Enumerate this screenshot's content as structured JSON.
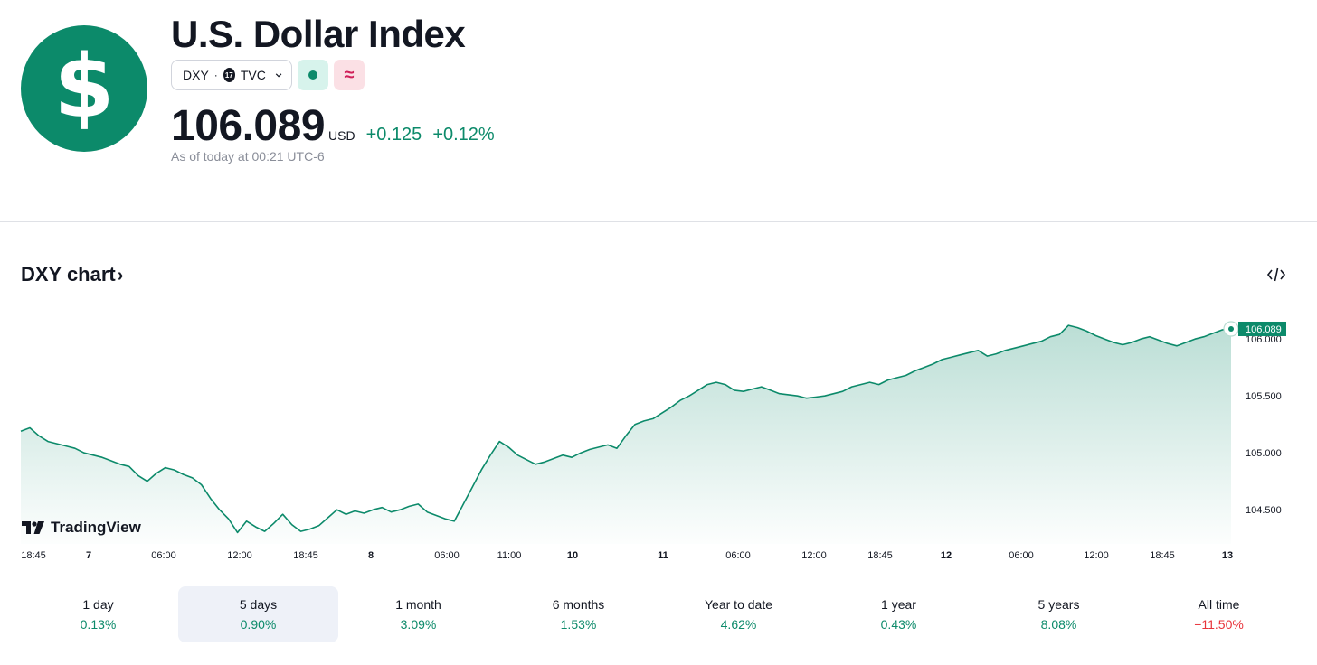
{
  "header": {
    "logo_glyph": "$",
    "title": "U.S. Dollar Index",
    "symbol": "DXY",
    "separator": "·",
    "exchange_badge": "17",
    "exchange": "TVC",
    "market_status_icon": "open-dot-icon",
    "delayed_icon_glyph": "≈",
    "price": "106.089",
    "currency": "USD",
    "change": "+0.125",
    "change_percent": "+0.12%",
    "as_of": "As of today at 00:21 UTC-6"
  },
  "chart_section": {
    "title": "DXY chart",
    "title_arrow": "›",
    "embed_icon": "code-embed-icon",
    "brand": "TradingView"
  },
  "chart_data": {
    "type": "area",
    "series": [
      {
        "values": [
          105.19,
          105.22,
          105.15,
          105.1,
          105.08,
          105.06,
          105.04,
          105.0,
          104.98,
          104.96,
          104.93,
          104.9,
          104.88,
          104.8,
          104.75,
          104.82,
          104.87,
          104.85,
          104.81,
          104.78,
          104.72,
          104.6,
          104.5,
          104.42,
          104.3,
          104.4,
          104.35,
          104.31,
          104.38,
          104.46,
          104.37,
          104.31,
          104.33,
          104.36,
          104.43,
          104.5,
          104.46,
          104.49,
          104.47,
          104.5,
          104.52,
          104.48,
          104.5,
          104.53,
          104.55,
          104.48,
          104.45,
          104.42,
          104.4,
          104.55,
          104.7,
          104.85,
          104.98,
          105.1,
          105.05,
          104.98,
          104.94,
          104.9,
          104.92,
          104.95,
          104.98,
          104.96,
          105.0,
          105.03,
          105.05,
          105.07,
          105.04,
          105.15,
          105.25,
          105.28,
          105.3,
          105.35,
          105.4,
          105.46,
          105.5,
          105.55,
          105.6,
          105.62,
          105.6,
          105.55,
          105.54,
          105.56,
          105.58,
          105.55,
          105.52,
          105.51,
          105.5,
          105.48,
          105.49,
          105.5,
          105.52,
          105.54,
          105.58,
          105.6,
          105.62,
          105.6,
          105.64,
          105.66,
          105.68,
          105.72,
          105.75,
          105.78,
          105.82,
          105.84,
          105.86,
          105.88,
          105.9,
          105.85,
          105.87,
          105.9,
          105.92,
          105.94,
          105.96,
          105.98,
          106.02,
          106.04,
          106.12,
          106.1,
          106.07,
          106.03,
          106.0,
          105.97,
          105.95,
          105.97,
          106.0,
          106.02,
          105.99,
          105.96,
          105.94,
          105.97,
          106.0,
          106.02,
          106.05,
          106.08,
          106.089
        ]
      }
    ],
    "price_label": "106.089",
    "y_ticks": [
      "106.000",
      "105.500",
      "105.000",
      "104.500"
    ],
    "ylim": [
      104.2,
      106.2
    ],
    "x_ticks": [
      {
        "label": "18:45",
        "bold": false
      },
      {
        "label": "7",
        "bold": true
      },
      {
        "label": "06:00",
        "bold": false
      },
      {
        "label": "12:00",
        "bold": false
      },
      {
        "label": "18:45",
        "bold": false
      },
      {
        "label": "8",
        "bold": true
      },
      {
        "label": "06:00",
        "bold": false
      },
      {
        "label": "11:00",
        "bold": false
      },
      {
        "label": "10",
        "bold": true
      },
      {
        "label": "11",
        "bold": true
      },
      {
        "label": "06:00",
        "bold": false
      },
      {
        "label": "12:00",
        "bold": false
      },
      {
        "label": "18:45",
        "bold": false
      },
      {
        "label": "12",
        "bold": true
      },
      {
        "label": "06:00",
        "bold": false
      },
      {
        "label": "12:00",
        "bold": false
      },
      {
        "label": "18:45",
        "bold": false
      },
      {
        "label": "13",
        "bold": true
      }
    ],
    "line_color": "#0c8a6a",
    "fill_color": "#0c8a6a",
    "grid": false
  },
  "periods": [
    {
      "label": "1 day",
      "value": "0.13%",
      "positive": true
    },
    {
      "label": "5 days",
      "value": "0.90%",
      "positive": true,
      "active": true
    },
    {
      "label": "1 month",
      "value": "3.09%",
      "positive": true
    },
    {
      "label": "6 months",
      "value": "1.53%",
      "positive": true
    },
    {
      "label": "Year to date",
      "value": "4.62%",
      "positive": true
    },
    {
      "label": "1 year",
      "value": "0.43%",
      "positive": true
    },
    {
      "label": "5 years",
      "value": "8.08%",
      "positive": true
    },
    {
      "label": "All time",
      "value": "−11.50%",
      "positive": false
    }
  ]
}
